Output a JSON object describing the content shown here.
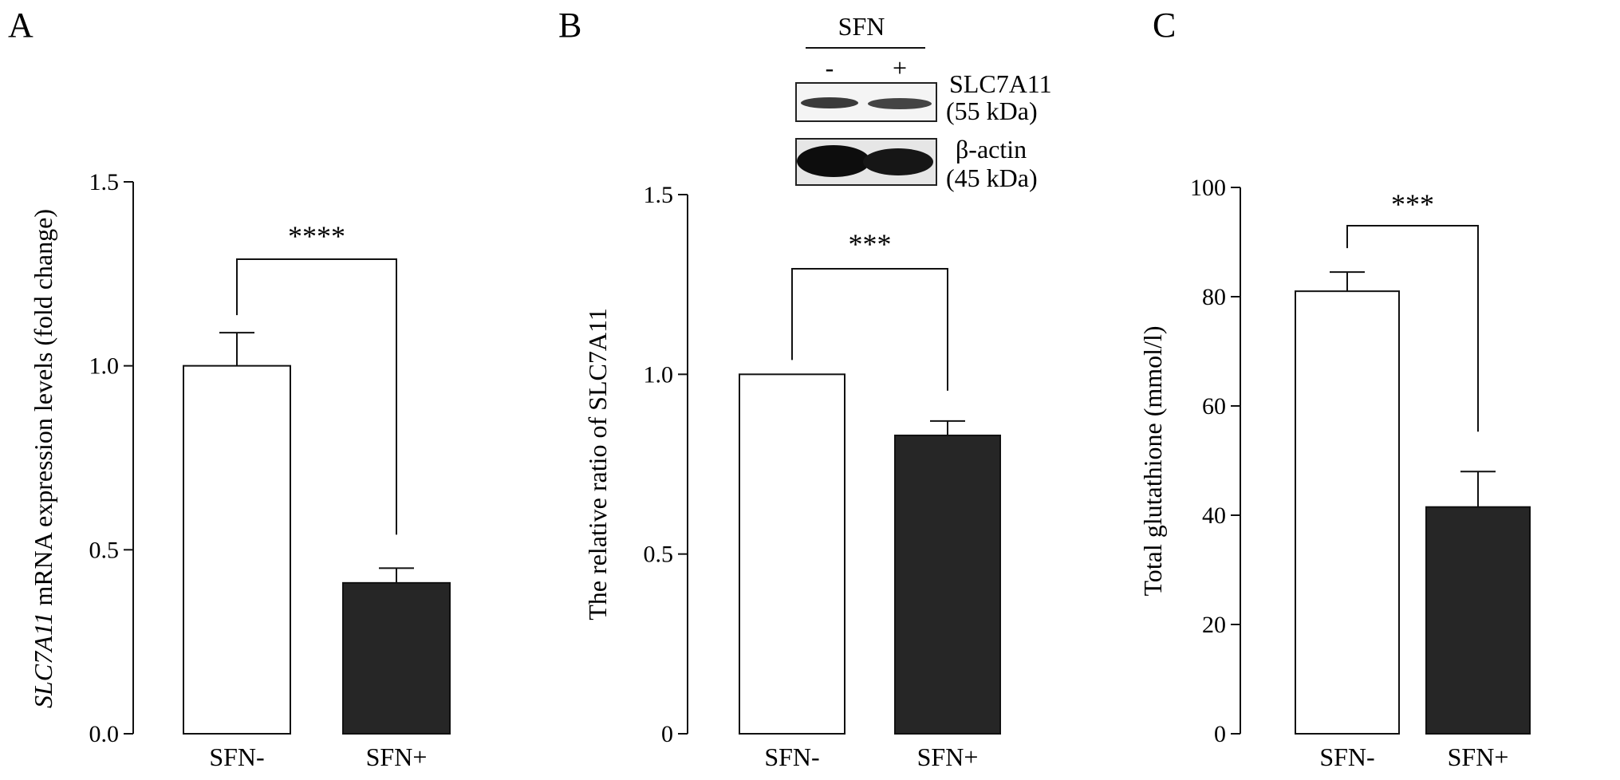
{
  "chart_data": [
    {
      "panel": "A",
      "type": "bar",
      "categories": [
        "SFN-",
        "SFN+"
      ],
      "values": [
        1.0,
        0.41
      ],
      "errors": [
        0.09,
        0.04
      ],
      "bar_colors": [
        "#ffffff",
        "#262626"
      ],
      "ylabel_italic": "SLC7A11",
      "ylabel_rest": " mRNA expression levels (fold change)",
      "ylim": [
        0,
        1.5
      ],
      "yticks": [
        "0.0",
        "0.5",
        "1.0",
        "1.5"
      ],
      "ytick_values": [
        0,
        0.5,
        1.0,
        1.5
      ],
      "significance": "****"
    },
    {
      "panel": "B",
      "type": "bar",
      "categories": [
        "SFN-",
        "SFN+"
      ],
      "values": [
        1.0,
        0.83
      ],
      "errors": [
        0.0,
        0.04
      ],
      "bar_colors": [
        "#ffffff",
        "#262626"
      ],
      "ylabel": "The relative ratio of SLC7A11",
      "ylim": [
        0,
        1.5
      ],
      "yticks": [
        "0",
        "0.5",
        "1.0",
        "1.5"
      ],
      "ytick_values": [
        0,
        0.5,
        1.0,
        1.5
      ],
      "significance": "***",
      "blot": {
        "treatment": "SFN",
        "lanes": [
          "-",
          "+"
        ],
        "bands": [
          {
            "protein": "SLC7A11",
            "size": "(55 kDa)"
          },
          {
            "protein": "β-actin",
            "size": "(45 kDa)"
          }
        ]
      }
    },
    {
      "panel": "C",
      "type": "bar",
      "categories": [
        "SFN-",
        "SFN+"
      ],
      "values": [
        81,
        41.5
      ],
      "errors": [
        3.5,
        6.5
      ],
      "bar_colors": [
        "#ffffff",
        "#262626"
      ],
      "ylabel": "Total glutathione (mmol/l)",
      "ylim": [
        0,
        100
      ],
      "yticks": [
        "0",
        "20",
        "40",
        "60",
        "80",
        "100"
      ],
      "ytick_values": [
        0,
        20,
        40,
        60,
        80,
        100
      ],
      "significance": "***"
    }
  ]
}
